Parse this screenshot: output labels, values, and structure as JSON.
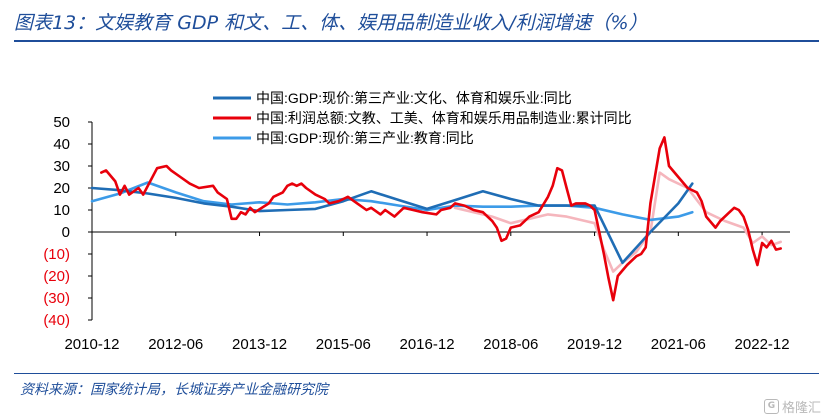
{
  "title": "图表13：文娱教育 GDP 和文、工、体、娱用品制造业收入/利润增速（%）",
  "source": "资料来源：国家统计局，长城证券产业金融研究院",
  "watermark": "格隆汇",
  "watermark_icon": "g-logo-icon",
  "chart_data": {
    "type": "line",
    "ylim": [
      -40,
      50
    ],
    "yticks": [
      {
        "value": 50,
        "label": "50"
      },
      {
        "value": 40,
        "label": "40"
      },
      {
        "value": 30,
        "label": "30"
      },
      {
        "value": 20,
        "label": "20"
      },
      {
        "value": 10,
        "label": "10"
      },
      {
        "value": 0,
        "label": "0"
      },
      {
        "value": -10,
        "label": "(10)"
      },
      {
        "value": -20,
        "label": "(20)"
      },
      {
        "value": -30,
        "label": "(30)"
      },
      {
        "value": -40,
        "label": "(40)"
      }
    ],
    "negative_tick_color": "#e8000b",
    "xrange": [
      "2010-12",
      "2023-06"
    ],
    "xticks": [
      "2010-12",
      "2012-06",
      "2013-12",
      "2015-06",
      "2016-12",
      "2018-06",
      "2019-12",
      "2021-06",
      "2022-12"
    ],
    "series": [
      {
        "name": "中国:GDP:现价:第三产业:文化、体育和娱乐业:同比",
        "color": "#1f6db5",
        "width": 2.6,
        "points": [
          [
            "2010-12",
            20
          ],
          [
            "2011-06",
            19
          ],
          [
            "2011-12",
            17.5
          ],
          [
            "2012-06",
            15.5
          ],
          [
            "2012-12",
            13
          ],
          [
            "2013-06",
            11.5
          ],
          [
            "2013-12",
            9.5
          ],
          [
            "2014-06",
            10
          ],
          [
            "2014-12",
            10.5
          ],
          [
            "2015-06",
            14
          ],
          [
            "2015-12",
            18.5
          ],
          [
            "2016-06",
            14.5
          ],
          [
            "2016-12",
            10.5
          ],
          [
            "2017-06",
            14.5
          ],
          [
            "2017-12",
            18.5
          ],
          [
            "2018-06",
            15
          ],
          [
            "2018-12",
            12
          ],
          [
            "2019-06",
            12
          ],
          [
            "2019-12",
            12
          ],
          [
            "2020-06",
            -14
          ],
          [
            "2020-12",
            0
          ],
          [
            "2021-06",
            13
          ],
          [
            "2021-09",
            22
          ]
        ]
      },
      {
        "name": "中国:利润总额:文教、工美、体育和娱乐用品制造业:累计同比",
        "color": "#e8000b",
        "width": 2.6,
        "points": [
          [
            "2011-02",
            27
          ],
          [
            "2011-03",
            28
          ],
          [
            "2011-05",
            23
          ],
          [
            "2011-06",
            17
          ],
          [
            "2011-07",
            21
          ],
          [
            "2011-08",
            17
          ],
          [
            "2011-10",
            20
          ],
          [
            "2011-11",
            17
          ],
          [
            "2012-02",
            29
          ],
          [
            "2012-04",
            30
          ],
          [
            "2012-05",
            28
          ],
          [
            "2012-07",
            25
          ],
          [
            "2012-09",
            22
          ],
          [
            "2012-11",
            20
          ],
          [
            "2013-02",
            21
          ],
          [
            "2013-03",
            18
          ],
          [
            "2013-05",
            15
          ],
          [
            "2013-06",
            6
          ],
          [
            "2013-07",
            6
          ],
          [
            "2013-08",
            9
          ],
          [
            "2013-09",
            8
          ],
          [
            "2013-10",
            11
          ],
          [
            "2013-11",
            9
          ],
          [
            "2014-02",
            13
          ],
          [
            "2014-03",
            16
          ],
          [
            "2014-05",
            18
          ],
          [
            "2014-06",
            21
          ],
          [
            "2014-07",
            22
          ],
          [
            "2014-08",
            21
          ],
          [
            "2014-09",
            22
          ],
          [
            "2014-10",
            20
          ],
          [
            "2014-12",
            17
          ],
          [
            "2015-02",
            15
          ],
          [
            "2015-03",
            13
          ],
          [
            "2015-05",
            14
          ],
          [
            "2015-06",
            15
          ],
          [
            "2015-07",
            16
          ],
          [
            "2015-09",
            13
          ],
          [
            "2015-11",
            10
          ],
          [
            "2015-12",
            11
          ],
          [
            "2016-02",
            8
          ],
          [
            "2016-03",
            10
          ],
          [
            "2016-05",
            7
          ],
          [
            "2016-06",
            9
          ],
          [
            "2016-07",
            11
          ],
          [
            "2016-09",
            10
          ],
          [
            "2016-11",
            9
          ],
          [
            "2017-02",
            8
          ],
          [
            "2017-03",
            10
          ],
          [
            "2017-05",
            11
          ],
          [
            "2017-06",
            13
          ],
          [
            "2017-08",
            12
          ],
          [
            "2017-10",
            10
          ],
          [
            "2017-12",
            9
          ],
          [
            "2018-02",
            5
          ],
          [
            "2018-03",
            2
          ],
          [
            "2018-04",
            -4
          ],
          [
            "2018-05",
            -3
          ],
          [
            "2018-06",
            2
          ],
          [
            "2018-08",
            3
          ],
          [
            "2018-10",
            7
          ],
          [
            "2018-12",
            9
          ],
          [
            "2019-02",
            16
          ],
          [
            "2019-03",
            21
          ],
          [
            "2019-04",
            29
          ],
          [
            "2019-05",
            28
          ],
          [
            "2019-06",
            20
          ],
          [
            "2019-07",
            12
          ],
          [
            "2019-08",
            13
          ],
          [
            "2019-10",
            13
          ],
          [
            "2019-11",
            12
          ],
          [
            "2019-12",
            10
          ],
          [
            "2020-02",
            -10
          ],
          [
            "2020-03",
            -21
          ],
          [
            "2020-04",
            -31
          ],
          [
            "2020-05",
            -20
          ],
          [
            "2020-07",
            -15
          ],
          [
            "2020-09",
            -11
          ],
          [
            "2020-10",
            -10
          ],
          [
            "2020-11",
            -7
          ],
          [
            "2020-12",
            13
          ],
          [
            "2021-02",
            38
          ],
          [
            "2021-03",
            43
          ],
          [
            "2021-04",
            30
          ],
          [
            "2021-06",
            25
          ],
          [
            "2021-08",
            20
          ],
          [
            "2021-10",
            18
          ],
          [
            "2021-11",
            14
          ],
          [
            "2021-12",
            7
          ],
          [
            "2022-02",
            2
          ],
          [
            "2022-03",
            5
          ],
          [
            "2022-05",
            9
          ],
          [
            "2022-06",
            11
          ],
          [
            "2022-07",
            10
          ],
          [
            "2022-08",
            7
          ],
          [
            "2022-09",
            1
          ],
          [
            "2022-10",
            -8
          ],
          [
            "2022-11",
            -15
          ],
          [
            "2022-12",
            -5
          ],
          [
            "2023-01",
            -7
          ],
          [
            "2023-02",
            -4
          ],
          [
            "2023-03",
            -8
          ],
          [
            "2023-04",
            -7.5
          ]
        ]
      },
      {
        "name": "中国:GDP:现价:第三产业:教育:同比",
        "color": "#3c9be8",
        "width": 2.6,
        "points": [
          [
            "2010-12",
            14
          ],
          [
            "2011-06",
            17.5
          ],
          [
            "2011-12",
            22.5
          ],
          [
            "2012-06",
            18
          ],
          [
            "2012-12",
            14
          ],
          [
            "2013-06",
            12.5
          ],
          [
            "2013-12",
            13.5
          ],
          [
            "2014-06",
            12.5
          ],
          [
            "2014-12",
            13.5
          ],
          [
            "2015-06",
            15
          ],
          [
            "2015-12",
            14
          ],
          [
            "2016-06",
            12
          ],
          [
            "2016-12",
            10
          ],
          [
            "2017-06",
            12
          ],
          [
            "2017-12",
            11.5
          ],
          [
            "2018-06",
            11.5
          ],
          [
            "2018-12",
            12
          ],
          [
            "2019-06",
            12
          ],
          [
            "2019-12",
            11
          ],
          [
            "2020-06",
            8
          ],
          [
            "2020-12",
            5.5
          ],
          [
            "2021-06",
            7
          ],
          [
            "2021-09",
            9
          ]
        ]
      },
      {
        "name": "",
        "color": "#f5b6bd",
        "width": 2.6,
        "points": [
          [
            "2017-06",
            11
          ],
          [
            "2017-10",
            9
          ],
          [
            "2018-02",
            7
          ],
          [
            "2018-06",
            4
          ],
          [
            "2018-10",
            6
          ],
          [
            "2019-02",
            8
          ],
          [
            "2019-06",
            7
          ],
          [
            "2019-10",
            5
          ],
          [
            "2019-12",
            4
          ],
          [
            "2020-02",
            -8
          ],
          [
            "2020-04",
            -18
          ],
          [
            "2020-06",
            -14
          ],
          [
            "2020-09",
            -9
          ],
          [
            "2020-12",
            0
          ],
          [
            "2021-02",
            27
          ],
          [
            "2021-04",
            24
          ],
          [
            "2021-08",
            20
          ],
          [
            "2021-12",
            9
          ],
          [
            "2022-04",
            5
          ],
          [
            "2022-08",
            2
          ],
          [
            "2022-10",
            -5
          ],
          [
            "2022-12",
            -2
          ],
          [
            "2023-02",
            -6
          ],
          [
            "2023-04",
            -4.5
          ]
        ]
      }
    ],
    "legend": [
      "中国:GDP:现价:第三产业:文化、体育和娱乐业:同比",
      "中国:利润总额:文教、工美、体育和娱乐用品制造业:累计同比",
      "中国:GDP:现价:第三产业:教育:同比"
    ],
    "legend_colors": [
      "#1f6db5",
      "#e8000b",
      "#3c9be8"
    ]
  }
}
